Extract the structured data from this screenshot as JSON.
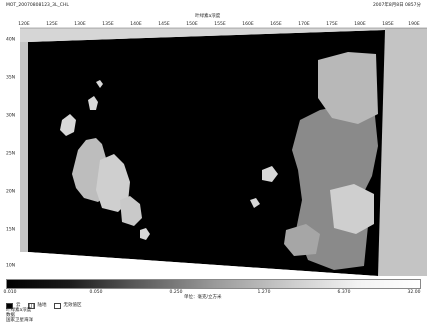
{
  "header": {
    "left": "MOT_20070808123_3L_CHL",
    "center": "叶绿素a浓度",
    "right": "2007年8月8日 0857分"
  },
  "map": {
    "top_ticks": [
      "120E",
      "125E",
      "130E",
      "135E",
      "140E",
      "145E",
      "150E",
      "155E",
      "160E",
      "165E",
      "170E",
      "175E",
      "180E",
      "185E",
      "190E"
    ],
    "left_ticks": [
      "40N",
      "35N",
      "30N",
      "25N",
      "20N",
      "15N",
      "10N"
    ]
  },
  "colorbar": {
    "ticks": [
      "0.010",
      "0.050",
      "0.250",
      "1.270",
      "6.370",
      "32.00"
    ],
    "unit": "单位：毫克/立方米"
  },
  "legend": {
    "items": [
      {
        "label": "云",
        "swatch": "black"
      },
      {
        "label": "陆地",
        "swatch": "lined"
      },
      {
        "label": "无效值区",
        "swatch": "outline"
      }
    ],
    "line2": "叶绿素a浓度",
    "line3": "数据",
    "line4": "国家卫星海洋"
  }
}
